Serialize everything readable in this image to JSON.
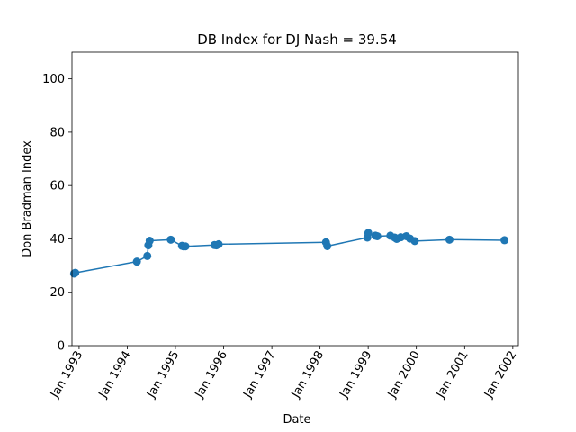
{
  "chart_data": {
    "type": "line",
    "title": "DB Index for DJ Nash = 39.54",
    "xlabel": "Date",
    "ylabel": "Don Bradman Index",
    "ylim": [
      0,
      110
    ],
    "xlim": [
      "1992-11-08",
      "2002-02-12"
    ],
    "yticks": [
      0,
      20,
      40,
      60,
      80,
      100
    ],
    "xticks": [
      {
        "date": "1993-01-01",
        "label": "Jan 1993"
      },
      {
        "date": "1994-01-01",
        "label": "Jan 1994"
      },
      {
        "date": "1995-01-01",
        "label": "Jan 1995"
      },
      {
        "date": "1996-01-01",
        "label": "Jan 1996"
      },
      {
        "date": "1997-01-01",
        "label": "Jan 1997"
      },
      {
        "date": "1998-01-01",
        "label": "Jan 1998"
      },
      {
        "date": "1999-01-01",
        "label": "Jan 1999"
      },
      {
        "date": "2000-01-01",
        "label": "Jan 2000"
      },
      {
        "date": "2001-01-01",
        "label": "Jan 2001"
      },
      {
        "date": "2002-01-01",
        "label": "Jan 2002"
      }
    ],
    "grid": false,
    "color": "#1f77b4",
    "series": [
      {
        "points": [
          {
            "date": "1992-11-24",
            "y": 27.0
          },
          {
            "date": "1992-12-03",
            "y": 27.3
          },
          {
            "date": "1994-03-15",
            "y": 31.5
          },
          {
            "date": "1994-06-02",
            "y": 33.6
          },
          {
            "date": "1994-06-10",
            "y": 37.6
          },
          {
            "date": "1994-06-20",
            "y": 39.3
          },
          {
            "date": "1994-11-27",
            "y": 39.7
          },
          {
            "date": "1995-02-20",
            "y": 37.4
          },
          {
            "date": "1995-03-03",
            "y": 37.2
          },
          {
            "date": "1995-03-18",
            "y": 37.2
          },
          {
            "date": "1995-10-24",
            "y": 37.7
          },
          {
            "date": "1995-11-08",
            "y": 37.6
          },
          {
            "date": "1995-11-25",
            "y": 38.0
          },
          {
            "date": "1998-02-15",
            "y": 38.7
          },
          {
            "date": "1998-02-25",
            "y": 37.3
          },
          {
            "date": "1998-12-26",
            "y": 40.5
          },
          {
            "date": "1999-01-02",
            "y": 42.2
          },
          {
            "date": "1999-02-25",
            "y": 41.2
          },
          {
            "date": "1999-03-11",
            "y": 41.0
          },
          {
            "date": "1999-06-18",
            "y": 41.2
          },
          {
            "date": "1999-07-21",
            "y": 40.5
          },
          {
            "date": "1999-08-05",
            "y": 40.0
          },
          {
            "date": "1999-09-05",
            "y": 40.6
          },
          {
            "date": "1999-10-17",
            "y": 41.0
          },
          {
            "date": "1999-11-14",
            "y": 40.1
          },
          {
            "date": "1999-12-20",
            "y": 39.2
          },
          {
            "date": "2000-09-08",
            "y": 39.7
          },
          {
            "date": "2001-10-30",
            "y": 39.5
          }
        ]
      }
    ]
  }
}
